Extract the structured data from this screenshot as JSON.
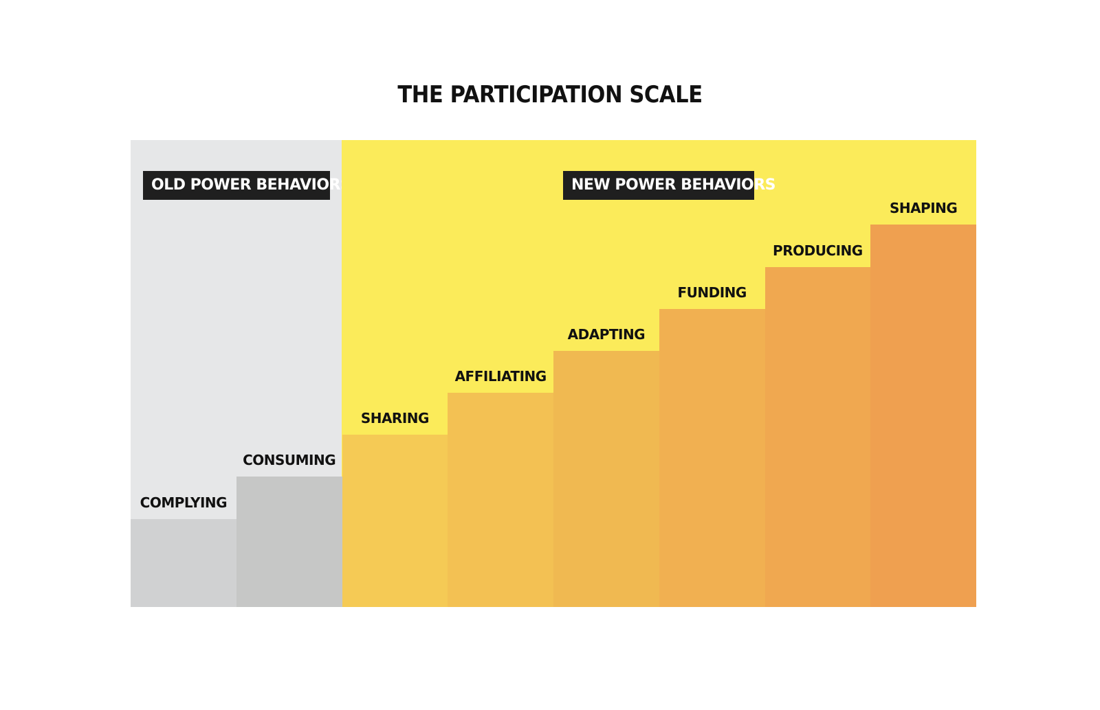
{
  "title": "THE PARTICIPATION SCALE",
  "zones": [
    {
      "label": "OLD POWER BEHAVIORS",
      "background": "#e6e7e8"
    },
    {
      "label": "NEW POWER BEHAVIORS",
      "background": "#fbeb5a"
    }
  ],
  "steps": [
    {
      "label": "COMPLYING",
      "color": "#d0d1d2",
      "zone": "old"
    },
    {
      "label": "CONSUMING",
      "color": "#c6c7c6",
      "zone": "old"
    },
    {
      "label": "SHARING",
      "color": "#f5ca55",
      "zone": "new"
    },
    {
      "label": "AFFILIATING",
      "color": "#f3c153",
      "zone": "new"
    },
    {
      "label": "ADAPTING",
      "color": "#f0b951",
      "zone": "new"
    },
    {
      "label": "FUNDING",
      "color": "#f1b051",
      "zone": "new"
    },
    {
      "label": "PRODUCING",
      "color": "#f0a850",
      "zone": "new"
    },
    {
      "label": "SHAPING",
      "color": "#efa050",
      "zone": "new"
    }
  ]
}
